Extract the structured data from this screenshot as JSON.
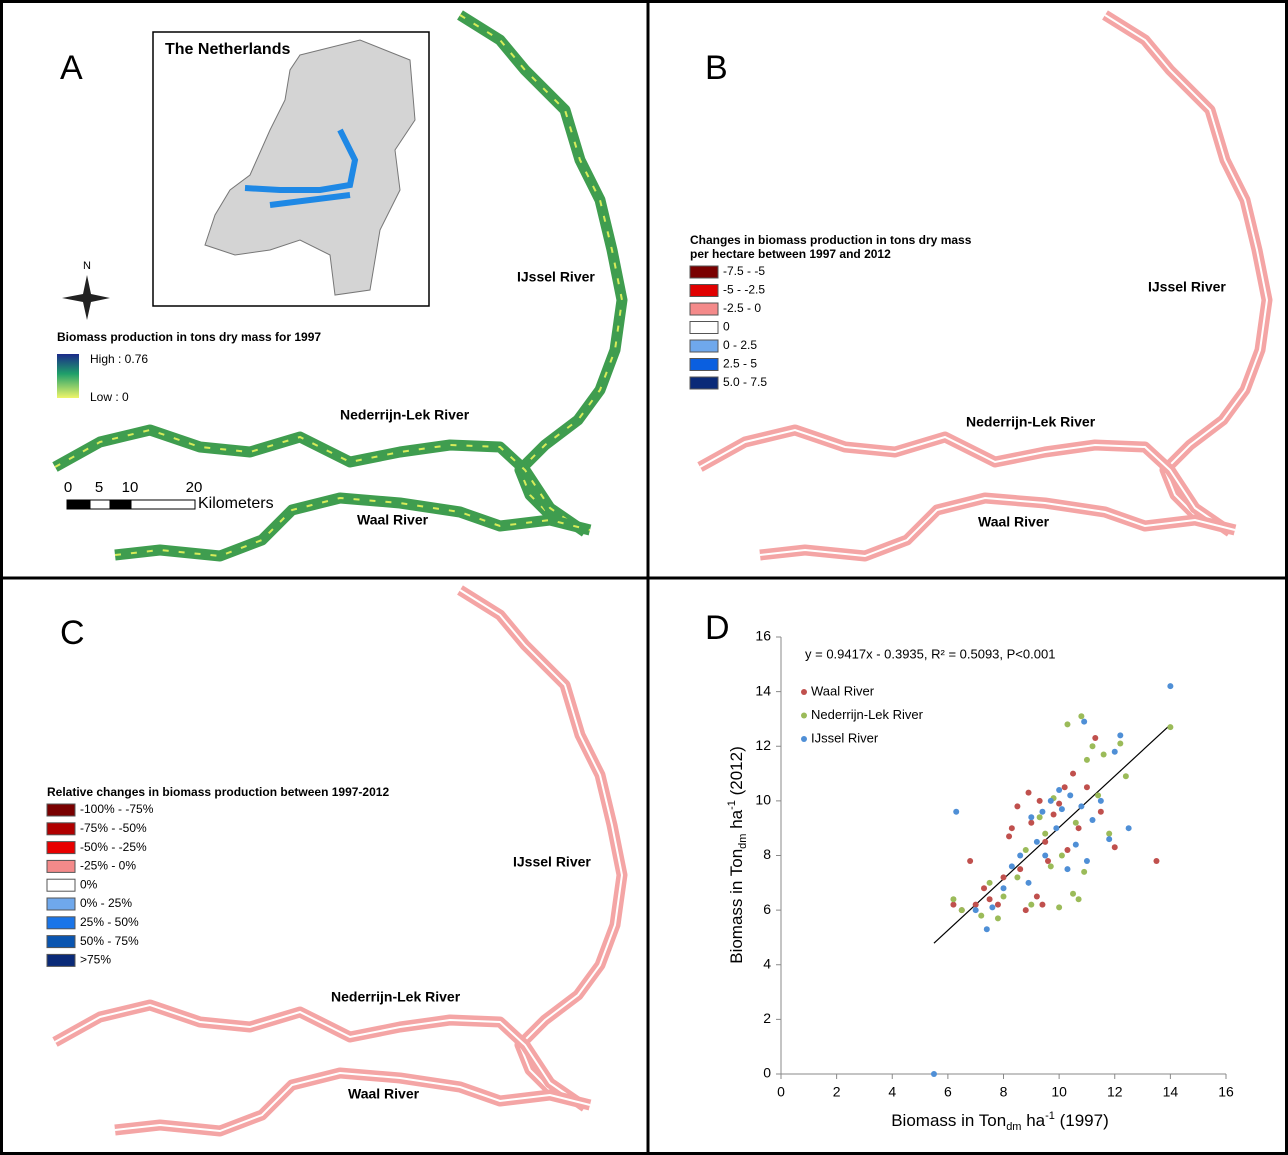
{
  "panels": [
    {
      "label": "A",
      "inset_title": "The Netherlands",
      "north": "N",
      "legend_title": "Biomass production in tons dry mass for 1997",
      "legend_high": "High : 0.76",
      "legend_low": "Low : 0",
      "river_labels": [
        "IJssel River",
        "Nederrijn-Lek River",
        "Waal River"
      ],
      "scale_labels": [
        0,
        5,
        10,
        20
      ],
      "scale_unit": "Kilometers"
    },
    {
      "label": "B",
      "legend_title": [
        "Changes in biomass production in tons dry mass",
        "per hectare between 1997 and 2012"
      ],
      "legend": [
        {
          "label": "-7.5 - -5",
          "color": "#7a0000"
        },
        {
          "label": "-5 - -2.5",
          "color": "#e00000"
        },
        {
          "label": "-2.5 - 0",
          "color": "#f48a8a"
        },
        {
          "label": "0",
          "color": "#ffffff"
        },
        {
          "label": "0 - 2.5",
          "color": "#6fa8ec"
        },
        {
          "label": "2.5 - 5",
          "color": "#0a5fe0"
        },
        {
          "label": "5.0 - 7.5",
          "color": "#0a2a78"
        }
      ],
      "river_labels": [
        "IJssel River",
        "Nederrijn-Lek River",
        "Waal River"
      ]
    },
    {
      "label": "C",
      "legend_title": [
        "Relative changes in biomass production between 1997-2012"
      ],
      "legend": [
        {
          "label": "-100% - -75%",
          "color": "#7a0000"
        },
        {
          "label": "-75% - -50%",
          "color": "#b00000"
        },
        {
          "label": "-50% - -25%",
          "color": "#e80000"
        },
        {
          "label": "-25% - 0%",
          "color": "#f48a8a"
        },
        {
          "label": "0%",
          "color": "#ffffff"
        },
        {
          "label": "0% - 25%",
          "color": "#6fa8ec"
        },
        {
          "label": "25% - 50%",
          "color": "#1a75e8"
        },
        {
          "label": "50% - 75%",
          "color": "#0a55b0"
        },
        {
          "label": ">75%",
          "color": "#0a2a78"
        }
      ],
      "river_labels": [
        "IJssel River",
        "Nederrijn-Lek River",
        "Waal River"
      ]
    }
  ],
  "chart_data": {
    "type": "scatter",
    "label": "D",
    "equation": "y = 0.9417x - 0.3935, R² = 0.5093, P<0.001",
    "xlabel": {
      "text": "Biomass in Ton",
      "sub": "dm",
      "mid": " ha",
      "sup": "-1",
      "end": " (1997)"
    },
    "ylabel": {
      "text": "Biomass in Ton",
      "sub": "dm",
      "mid": " ha",
      "sup": "-1",
      "end": " (2012)"
    },
    "xlim": [
      0,
      16
    ],
    "ylim": [
      0,
      16
    ],
    "xticks": [
      0,
      2,
      4,
      6,
      8,
      10,
      12,
      14,
      16
    ],
    "yticks": [
      0,
      2,
      4,
      6,
      8,
      10,
      12,
      14,
      16
    ],
    "trendline": {
      "x": [
        5.5,
        14
      ],
      "y": [
        4.79,
        12.79
      ],
      "color": "#000000"
    },
    "series": [
      {
        "name": "Waal River",
        "color": "#c0504d",
        "x": [
          6.2,
          6.5,
          6.8,
          7.0,
          7.3,
          7.5,
          7.8,
          8.0,
          8.2,
          8.3,
          8.5,
          8.6,
          8.8,
          9.0,
          9.2,
          9.3,
          9.5,
          9.6,
          9.8,
          10.0,
          10.2,
          10.3,
          10.5,
          10.7,
          11.0,
          11.3,
          11.5,
          12.0,
          13.5,
          9.4,
          8.9
        ],
        "values": [
          6.2,
          6.0,
          7.8,
          6.2,
          6.8,
          6.4,
          6.2,
          7.2,
          8.7,
          9.0,
          9.8,
          7.5,
          6.0,
          9.2,
          6.5,
          10.0,
          8.5,
          7.8,
          9.5,
          9.9,
          10.5,
          8.2,
          11.0,
          9.0,
          10.5,
          12.3,
          9.6,
          8.3,
          7.8,
          6.2,
          10.3
        ]
      },
      {
        "name": "Nederrijn-Lek River",
        "color": "#9bbb59",
        "x": [
          6.2,
          6.5,
          7.2,
          7.5,
          7.8,
          8.0,
          8.5,
          8.8,
          9.0,
          9.3,
          9.5,
          9.8,
          10.0,
          10.1,
          10.3,
          10.5,
          10.6,
          10.8,
          10.9,
          11.0,
          11.2,
          11.4,
          11.6,
          11.8,
          12.2,
          12.4,
          14.0,
          10.7,
          9.7
        ],
        "values": [
          6.4,
          6.0,
          5.8,
          7.0,
          5.7,
          6.5,
          7.2,
          8.2,
          6.2,
          9.4,
          8.8,
          10.1,
          6.1,
          8.0,
          12.8,
          6.6,
          9.2,
          13.1,
          7.4,
          11.5,
          12.0,
          10.2,
          11.7,
          8.8,
          12.1,
          10.9,
          12.7,
          6.4,
          7.6
        ]
      },
      {
        "name": "IJssel River",
        "color": "#4f8fd6",
        "x": [
          5.5,
          6.3,
          7.0,
          7.4,
          7.6,
          8.0,
          8.3,
          8.6,
          8.9,
          9.0,
          9.2,
          9.4,
          9.5,
          9.7,
          9.9,
          10.0,
          10.1,
          10.3,
          10.4,
          10.6,
          10.8,
          11.0,
          11.2,
          11.5,
          11.8,
          12.0,
          12.2,
          12.5,
          10.9,
          14.0
        ],
        "values": [
          0,
          9.6,
          6.0,
          5.3,
          6.1,
          6.8,
          7.6,
          8.0,
          7.0,
          9.4,
          8.5,
          9.6,
          8.0,
          10.0,
          9.0,
          10.4,
          9.7,
          7.5,
          10.2,
          8.4,
          9.8,
          7.8,
          9.3,
          10.0,
          8.6,
          11.8,
          12.4,
          9.0,
          12.9,
          14.2
        ]
      }
    ]
  }
}
